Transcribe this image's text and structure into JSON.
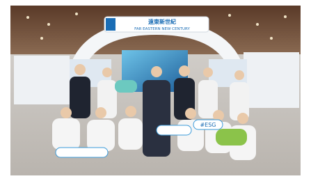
{
  "logo": {
    "brand": "FAR EASTERN NEW CENTURY",
    "chinese": "遠東新世紀"
  },
  "signs": [
    "#ESG"
  ]
}
